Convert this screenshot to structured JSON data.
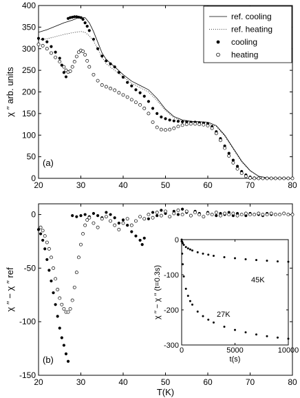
{
  "chart_data": [
    {
      "panel": "(a)",
      "type": "scatter",
      "xlabel": "",
      "ylabel": "χ ′′ arb. units",
      "xlim": [
        20,
        80
      ],
      "ylim": [
        0,
        400
      ],
      "xticks": [
        "20",
        "30",
        "40",
        "50",
        "60",
        "70",
        "80"
      ],
      "yticks": [
        "0",
        "50",
        "100",
        "150",
        "200",
        "250",
        "300",
        "350",
        "400"
      ],
      "legend_position": "top-right",
      "series": [
        {
          "name": "ref. cooling",
          "style": "solid-line",
          "x": [
            20,
            22,
            24,
            26,
            28,
            29,
            30,
            31,
            32,
            33,
            34,
            35,
            36,
            38,
            40,
            42,
            44,
            46,
            48,
            50,
            52,
            54,
            56,
            58,
            60,
            62,
            64,
            66,
            68,
            70,
            72,
            74,
            76,
            78,
            80
          ],
          "y": [
            338,
            344,
            352,
            360,
            366,
            370,
            373,
            372,
            360,
            340,
            315,
            290,
            275,
            258,
            240,
            225,
            215,
            205,
            185,
            160,
            143,
            135,
            132,
            131,
            130,
            122,
            100,
            70,
            40,
            18,
            5,
            1,
            0,
            0,
            0
          ]
        },
        {
          "name": "ref. heating",
          "style": "dotted-line",
          "x": [
            20,
            22,
            24,
            26,
            28,
            30,
            31,
            32,
            33,
            34,
            35,
            36,
            38,
            40,
            42,
            44,
            46,
            48,
            50,
            52,
            54,
            56,
            58,
            60,
            62,
            64,
            66,
            68,
            70,
            72,
            74,
            76,
            78,
            80
          ],
          "y": [
            320,
            323,
            328,
            333,
            337,
            340,
            338,
            330,
            318,
            300,
            280,
            265,
            250,
            235,
            220,
            210,
            200,
            180,
            157,
            140,
            132,
            130,
            129,
            128,
            120,
            98,
            68,
            38,
            17,
            5,
            1,
            0,
            0,
            0
          ]
        },
        {
          "name": "cooling",
          "style": "filled-dots",
          "x": [
            20,
            21,
            22,
            23,
            24,
            25,
            25.5,
            26,
            26.5,
            27,
            27.5,
            28,
            28.5,
            29,
            29.5,
            30,
            30.5,
            31,
            31.5,
            32,
            33,
            34,
            35,
            36,
            37,
            38,
            39,
            40,
            41,
            42,
            43,
            44,
            45,
            46,
            47,
            48,
            49,
            50,
            51,
            52,
            53,
            54,
            55,
            56,
            57,
            58,
            59,
            60,
            61,
            62,
            63,
            64,
            65,
            66,
            67,
            68,
            69,
            70,
            71,
            72,
            73,
            74,
            75,
            76,
            77,
            78,
            79,
            80
          ],
          "y": [
            324,
            322,
            316,
            305,
            292,
            278,
            262,
            245,
            235,
            370,
            372,
            373,
            374,
            374,
            373,
            372,
            368,
            360,
            352,
            342,
            322,
            300,
            283,
            272,
            265,
            258,
            245,
            234,
            222,
            214,
            205,
            198,
            190,
            178,
            162,
            150,
            142,
            138,
            135,
            133,
            132,
            131,
            131,
            130,
            130,
            129,
            128,
            126,
            120,
            108,
            92,
            75,
            58,
            42,
            28,
            16,
            8,
            3,
            1,
            0,
            0,
            0,
            0,
            0,
            0,
            0,
            0,
            0
          ]
        },
        {
          "name": "heating",
          "style": "open-circles",
          "x": [
            20,
            21,
            22,
            23,
            24,
            25,
            26,
            26.5,
            27,
            27.5,
            28,
            28.5,
            29,
            29.5,
            30,
            30.5,
            31,
            31.5,
            32,
            33,
            34,
            35,
            36,
            37,
            38,
            39,
            40,
            41,
            42,
            43,
            44,
            45,
            46,
            47,
            48,
            49,
            50,
            51,
            52,
            53,
            54,
            55,
            56,
            57,
            58,
            59,
            60,
            61,
            62,
            63,
            64,
            65,
            66,
            67,
            68,
            69,
            70,
            71,
            72,
            73,
            74,
            75,
            76,
            77,
            78,
            79,
            80
          ],
          "y": [
            310,
            307,
            300,
            290,
            280,
            270,
            258,
            250,
            246,
            248,
            258,
            270,
            282,
            292,
            296,
            294,
            286,
            272,
            258,
            240,
            226,
            216,
            212,
            208,
            204,
            198,
            193,
            188,
            182,
            176,
            170,
            162,
            150,
            130,
            118,
            113,
            112,
            113,
            116,
            120,
            123,
            125,
            126,
            126,
            125,
            124,
            122,
            116,
            104,
            88,
            70,
            52,
            36,
            22,
            12,
            5,
            1,
            0,
            0,
            0,
            0,
            0,
            0,
            0,
            0,
            0,
            0
          ]
        }
      ]
    },
    {
      "panel": "(b)",
      "type": "scatter",
      "xlabel": "T(K)",
      "ylabel": "χ ′′ − χ ′′ ref",
      "xlim": [
        20,
        80
      ],
      "ylim": [
        -150,
        10
      ],
      "xticks": [
        "20",
        "30",
        "40",
        "50",
        "60",
        "70",
        "80"
      ],
      "yticks": [
        "0",
        "-50",
        "-100",
        "-150"
      ],
      "series": [
        {
          "name": "cooling",
          "style": "filled-dots",
          "x": [
            20,
            20.5,
            21,
            21.5,
            22,
            22.5,
            23,
            23.5,
            24,
            24.5,
            25,
            25.5,
            26,
            26.5,
            27,
            28,
            29,
            30,
            31,
            32,
            33,
            34,
            35,
            36,
            37,
            38,
            39,
            40,
            41,
            42,
            43,
            44,
            44.5,
            45,
            46,
            47,
            48,
            49,
            50,
            51,
            52,
            53,
            54,
            55,
            56,
            57,
            58,
            59,
            60,
            61,
            62,
            63,
            64,
            65,
            66,
            67,
            68,
            69,
            70,
            71,
            72,
            73,
            74,
            75,
            76,
            77,
            78,
            79,
            80
          ],
          "y": [
            -14,
            -18,
            -24,
            -32,
            -42,
            -52,
            -62,
            -73,
            -84,
            -95,
            -106,
            -115,
            -122,
            -130,
            -137,
            -1,
            -2,
            -1,
            0,
            -2,
            1,
            -1,
            -3,
            2,
            0,
            -3,
            -8,
            -5,
            -10,
            -16,
            -20,
            -24,
            -28,
            -22,
            -4,
            2,
            -1,
            4,
            1,
            -2,
            3,
            0,
            5,
            2,
            -1,
            3,
            1,
            -2,
            2,
            0,
            -1,
            1,
            0,
            2,
            -1,
            1,
            0,
            -1,
            1,
            0,
            0,
            -1,
            1,
            0,
            0,
            0,
            1,
            0,
            0
          ]
        },
        {
          "name": "heating",
          "style": "open-circles",
          "x": [
            20.5,
            21,
            21.5,
            22,
            22.5,
            23,
            23.5,
            24,
            24.5,
            25,
            25.5,
            26,
            26.5,
            27,
            27.5,
            28,
            28.5,
            29,
            29.5,
            30,
            30.5,
            31,
            31.5,
            32,
            33,
            34,
            35,
            36,
            37,
            38,
            39,
            40,
            41,
            42,
            43,
            44,
            45,
            46,
            47,
            48,
            49,
            50,
            51,
            52,
            53,
            54,
            55,
            56,
            57,
            58,
            59,
            60,
            61,
            62,
            63,
            64,
            65,
            66,
            67,
            68,
            69,
            70,
            71,
            72,
            73,
            74,
            75,
            76,
            77,
            78,
            79,
            80
          ],
          "y": [
            -12,
            -15,
            -20,
            -26,
            -32,
            -40,
            -50,
            -60,
            -70,
            -78,
            -84,
            -88,
            -91,
            -91,
            -88,
            -80,
            -68,
            -54,
            -40,
            -28,
            -18,
            -10,
            -5,
            -3,
            -8,
            -12,
            -4,
            -2,
            -6,
            -10,
            -14,
            -8,
            -4,
            -10,
            -6,
            -2,
            -4,
            0,
            -3,
            2,
            -1,
            3,
            -2,
            1,
            4,
            0,
            3,
            -1,
            2,
            0,
            -2,
            1,
            0,
            2,
            -1,
            1,
            0,
            1,
            -1,
            0,
            1,
            0,
            0,
            1,
            0,
            0,
            1,
            0,
            0,
            1,
            0,
            0
          ]
        }
      ]
    },
    {
      "panel": "inset",
      "type": "scatter",
      "xlabel": "t(s)",
      "ylabel": "χ ′′ − χ ′′ (t=0.3s)",
      "xlim": [
        0,
        10000
      ],
      "ylim": [
        -300,
        0
      ],
      "xticks": [
        "0",
        "5000",
        "10000"
      ],
      "yticks": [
        "0",
        "-100",
        "-200",
        "-300"
      ],
      "series": [
        {
          "name": "45K",
          "style": "filled-dots",
          "x": [
            0,
            50,
            100,
            200,
            400,
            600,
            800,
            1000,
            1500,
            2000,
            2500,
            3000,
            4000,
            5000,
            6000,
            7000,
            8000,
            9000,
            10000
          ],
          "y": [
            0,
            -6,
            -10,
            -15,
            -21,
            -25,
            -28,
            -31,
            -36,
            -40,
            -43,
            -46,
            -50,
            -53,
            -56,
            -58,
            -60,
            -62,
            -63
          ]
        },
        {
          "name": "27K",
          "style": "filled-dots",
          "x": [
            0,
            50,
            100,
            200,
            400,
            600,
            800,
            1000,
            1500,
            2000,
            2500,
            3000,
            4000,
            5000,
            6000,
            7000,
            8000,
            9000,
            10000
          ],
          "y": [
            -5,
            -40,
            -70,
            -105,
            -140,
            -160,
            -175,
            -185,
            -205,
            -218,
            -228,
            -236,
            -248,
            -257,
            -264,
            -270,
            -275,
            -279,
            -282
          ]
        }
      ]
    }
  ]
}
